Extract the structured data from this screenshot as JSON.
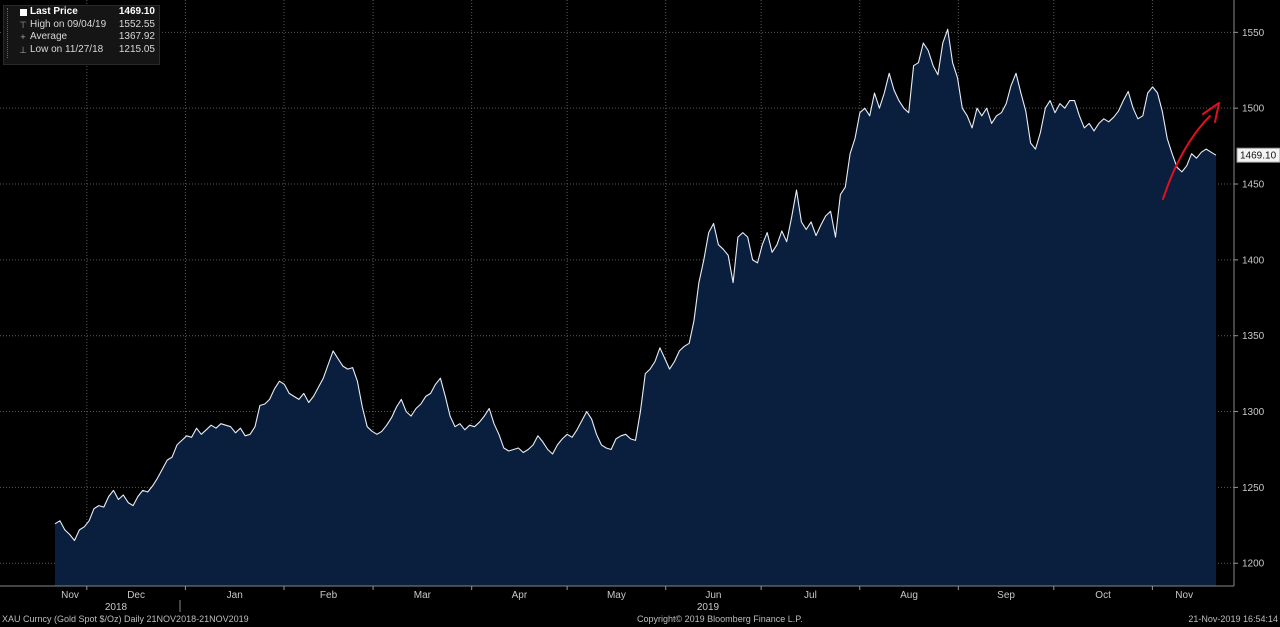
{
  "legend": {
    "items": [
      {
        "label": "Last Price",
        "value": "1469.10"
      },
      {
        "label": "High on 09/04/19",
        "value": "1552.55"
      },
      {
        "label": "Average",
        "value": "1367.92"
      },
      {
        "label": "Low on 11/27/18",
        "value": "1215.05"
      }
    ]
  },
  "footer": {
    "left": "XAU Curncy (Gold Spot  $/Oz)  Daily 21NOV2018-21NOV2019",
    "center": "Copyright© 2019 Bloomberg Finance L.P.",
    "right": "21-Nov-2019 16:54:14"
  },
  "colors": {
    "line": "#e8eef6",
    "fill": "#0a1f3d",
    "background": "#000000",
    "grid": "#5a5a5a",
    "arrow": "#e01020"
  },
  "chart_data": {
    "type": "area",
    "ylim": [
      1185,
      1570
    ],
    "yticks": [
      1200,
      1250,
      1300,
      1350,
      1400,
      1450,
      1500,
      1550
    ],
    "ytick_labels": [
      "1200",
      "1250",
      "1300",
      "1350",
      "1400",
      "1450",
      "1500",
      "1550"
    ],
    "grid": true,
    "months": [
      "Nov",
      "Dec",
      "Jan",
      "Feb",
      "Mar",
      "Apr",
      "May",
      "Jun",
      "Jul",
      "Aug",
      "Sep",
      "Oct",
      "Nov"
    ],
    "years": [
      "2018",
      "2019"
    ],
    "last_price_label": "1469.10",
    "x_start": "2018-11-21",
    "x_end": "2019-11-21",
    "series": [
      {
        "values": [
          1226,
          1228,
          1222,
          1219,
          1215,
          1222,
          1224,
          1228,
          1236,
          1238,
          1237,
          1244,
          1248,
          1242,
          1245,
          1240,
          1238,
          1244,
          1248,
          1247,
          1251,
          1256,
          1262,
          1268,
          1270,
          1278,
          1281,
          1284,
          1283,
          1289,
          1285,
          1288,
          1291,
          1289,
          1292,
          1291,
          1290,
          1286,
          1289,
          1284,
          1285,
          1290,
          1304,
          1305,
          1308,
          1315,
          1320,
          1318,
          1312,
          1310,
          1308,
          1312,
          1306,
          1310,
          1316,
          1322,
          1331,
          1340,
          1335,
          1330,
          1328,
          1329,
          1320,
          1303,
          1290,
          1287,
          1285,
          1287,
          1291,
          1296,
          1303,
          1308,
          1300,
          1297,
          1302,
          1305,
          1310,
          1312,
          1318,
          1322,
          1310,
          1297,
          1290,
          1292,
          1288,
          1291,
          1290,
          1293,
          1297,
          1302,
          1292,
          1285,
          1276,
          1274,
          1275,
          1276,
          1273,
          1275,
          1278,
          1284,
          1280,
          1275,
          1272,
          1278,
          1282,
          1285,
          1283,
          1288,
          1294,
          1300,
          1295,
          1285,
          1278,
          1276,
          1275,
          1282,
          1284,
          1285,
          1282,
          1281,
          1300,
          1325,
          1328,
          1333,
          1342,
          1335,
          1328,
          1333,
          1340,
          1343,
          1345,
          1360,
          1385,
          1400,
          1418,
          1424,
          1410,
          1407,
          1403,
          1385,
          1415,
          1418,
          1415,
          1400,
          1398,
          1410,
          1418,
          1405,
          1410,
          1419,
          1412,
          1428,
          1446,
          1425,
          1420,
          1425,
          1416,
          1423,
          1429,
          1432,
          1415,
          1443,
          1448,
          1470,
          1480,
          1497,
          1500,
          1495,
          1510,
          1500,
          1510,
          1523,
          1512,
          1505,
          1500,
          1497,
          1528,
          1530,
          1543,
          1538,
          1528,
          1522,
          1543,
          1552,
          1530,
          1520,
          1500,
          1495,
          1487,
          1500,
          1495,
          1500,
          1490,
          1495,
          1497,
          1503,
          1515,
          1523,
          1510,
          1498,
          1477,
          1473,
          1484,
          1500,
          1505,
          1497,
          1503,
          1500,
          1505,
          1505,
          1495,
          1487,
          1490,
          1485,
          1490,
          1493,
          1491,
          1494,
          1498,
          1505,
          1511,
          1500,
          1493,
          1495,
          1510,
          1514,
          1510,
          1498,
          1480,
          1470,
          1461,
          1458,
          1462,
          1470,
          1467,
          1471,
          1473,
          1471,
          1469
        ]
      }
    ]
  }
}
